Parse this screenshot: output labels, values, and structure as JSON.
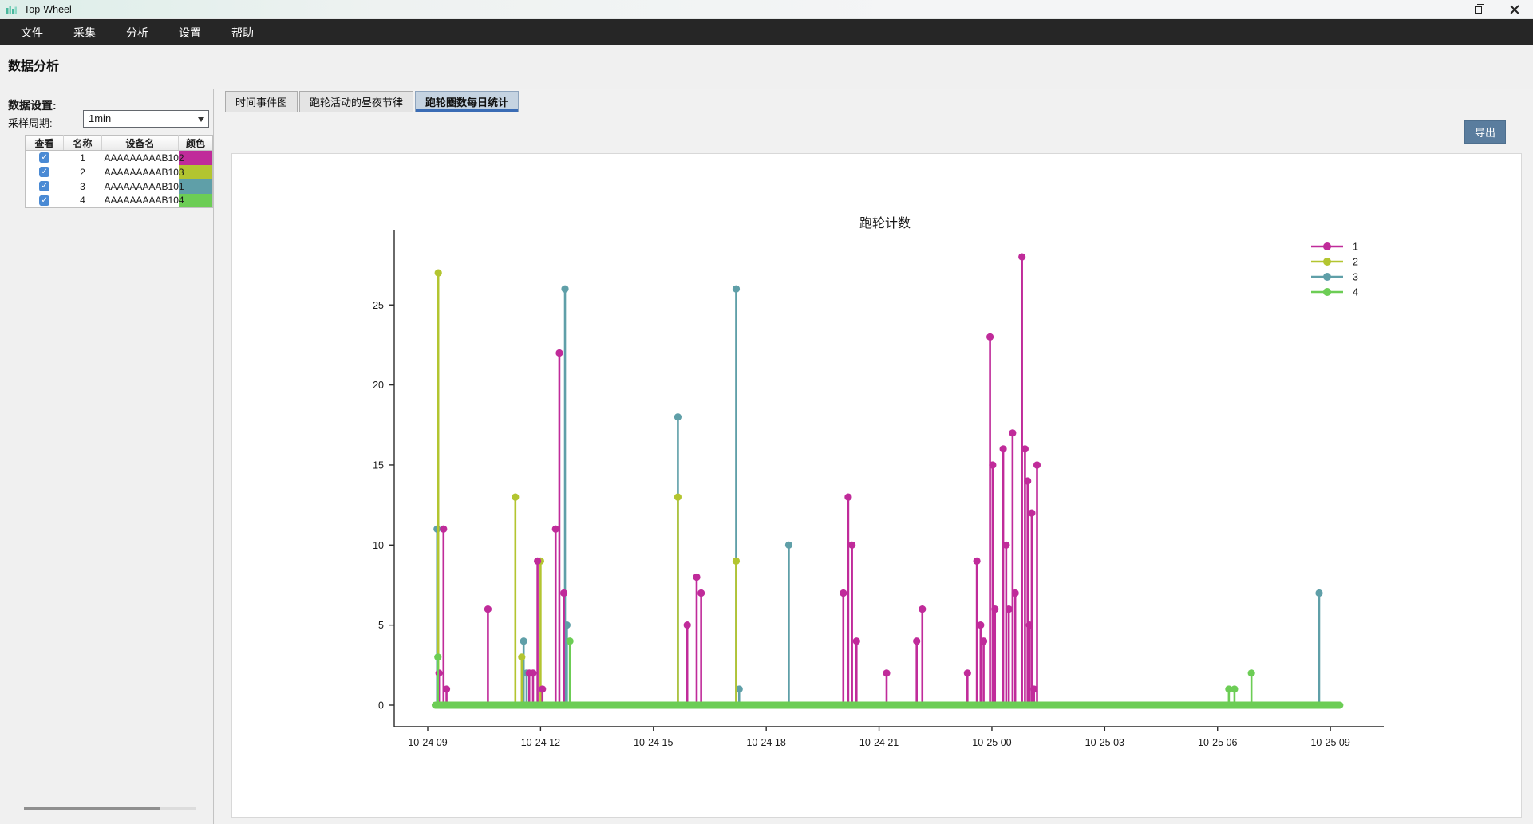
{
  "window": {
    "title": "Top-Wheel",
    "controls": [
      {
        "name": "minimize"
      },
      {
        "name": "maximize-restore"
      },
      {
        "name": "close"
      }
    ]
  },
  "menu": {
    "items": [
      {
        "label": "文件"
      },
      {
        "label": "采集"
      },
      {
        "label": "分析"
      },
      {
        "label": "设置"
      },
      {
        "label": "帮助"
      }
    ]
  },
  "page": {
    "title": "数据分析"
  },
  "sidebar": {
    "settings_title": "数据设置:",
    "sampling_label": "采样周期:",
    "sampling_value": "1min",
    "table": {
      "headers": [
        "查看",
        "名称",
        "设备名",
        "颜色"
      ],
      "rows": [
        {
          "checked": true,
          "name": "1",
          "device": "AAAAAAAAAB102",
          "color": "#c02b9a"
        },
        {
          "checked": true,
          "name": "2",
          "device": "AAAAAAAAAB103",
          "color": "#b3c530"
        },
        {
          "checked": true,
          "name": "3",
          "device": "AAAAAAAAAB101",
          "color": "#5f9fa8"
        },
        {
          "checked": true,
          "name": "4",
          "device": "AAAAAAAAAB104",
          "color": "#6ccd55"
        }
      ]
    }
  },
  "main": {
    "tabs": [
      {
        "label": "时间事件图",
        "active": false
      },
      {
        "label": "跑轮活动的昼夜节律",
        "active": false
      },
      {
        "label": "跑轮圈数每日统计",
        "active": true
      }
    ],
    "export_label": "导出"
  },
  "chart_data": {
    "type": "stem",
    "title": "跑轮计数",
    "xlabel": "",
    "ylabel": "",
    "x_unit": "hours since 10-24 09:00",
    "x_ticks": [
      "10-24 09",
      "10-24 12",
      "10-24 15",
      "10-24 18",
      "10-24 21",
      "10-25 00",
      "10-25 03",
      "10-25 06",
      "10-25 09"
    ],
    "x_tick_hours": [
      0,
      3,
      6,
      9,
      12,
      15,
      18,
      21,
      24
    ],
    "y_ticks": [
      0,
      5,
      10,
      15,
      20,
      25
    ],
    "ylim": [
      0,
      29
    ],
    "xlim_hours": [
      -0.9,
      25.4
    ],
    "grid": false,
    "legend_position": "top-right",
    "legend": [
      "1",
      "2",
      "3",
      "4"
    ],
    "series": [
      {
        "name": "1",
        "color": "#c02b9a",
        "points": [
          [
            0.3,
            2
          ],
          [
            0.42,
            11
          ],
          [
            0.5,
            1
          ],
          [
            1.6,
            6
          ],
          [
            2.7,
            2
          ],
          [
            2.8,
            2
          ],
          [
            2.92,
            9
          ],
          [
            3.05,
            1
          ],
          [
            3.4,
            11
          ],
          [
            3.5,
            22
          ],
          [
            3.62,
            7
          ],
          [
            6.9,
            5
          ],
          [
            7.15,
            8
          ],
          [
            7.27,
            7
          ],
          [
            11.05,
            7
          ],
          [
            11.18,
            13
          ],
          [
            11.28,
            10
          ],
          [
            11.4,
            4
          ],
          [
            12.2,
            2
          ],
          [
            13.0,
            4
          ],
          [
            13.15,
            6
          ],
          [
            14.35,
            2
          ],
          [
            14.6,
            9
          ],
          [
            14.7,
            5
          ],
          [
            14.78,
            4
          ],
          [
            14.95,
            23
          ],
          [
            15.02,
            15
          ],
          [
            15.08,
            6
          ],
          [
            15.3,
            16
          ],
          [
            15.38,
            10
          ],
          [
            15.45,
            6
          ],
          [
            15.55,
            17
          ],
          [
            15.62,
            7
          ],
          [
            15.8,
            28
          ],
          [
            15.88,
            16
          ],
          [
            15.95,
            14
          ],
          [
            16.0,
            5
          ],
          [
            16.06,
            12
          ],
          [
            16.12,
            1
          ],
          [
            16.2,
            15
          ]
        ]
      },
      {
        "name": "2",
        "color": "#b3c530",
        "points": [
          [
            0.28,
            27
          ],
          [
            2.33,
            13
          ],
          [
            2.5,
            3
          ],
          [
            3.0,
            9
          ],
          [
            6.65,
            13
          ],
          [
            8.2,
            9
          ]
        ]
      },
      {
        "name": "3",
        "color": "#5f9fa8",
        "points": [
          [
            0.25,
            11
          ],
          [
            2.55,
            4
          ],
          [
            2.63,
            2
          ],
          [
            3.65,
            26
          ],
          [
            3.7,
            5
          ],
          [
            6.65,
            18
          ],
          [
            8.2,
            26
          ],
          [
            8.28,
            1
          ],
          [
            9.6,
            10
          ],
          [
            23.7,
            7
          ]
        ]
      },
      {
        "name": "4",
        "color": "#6ccd55",
        "points": [
          [
            0.27,
            3
          ],
          [
            3.78,
            4
          ],
          [
            21.3,
            1
          ],
          [
            21.45,
            1
          ],
          [
            21.9,
            2
          ]
        ],
        "baseline": {
          "from": 0.2,
          "to": 24.25,
          "value": 0
        }
      }
    ],
    "draw_order": [
      2,
      1,
      0,
      3
    ]
  }
}
